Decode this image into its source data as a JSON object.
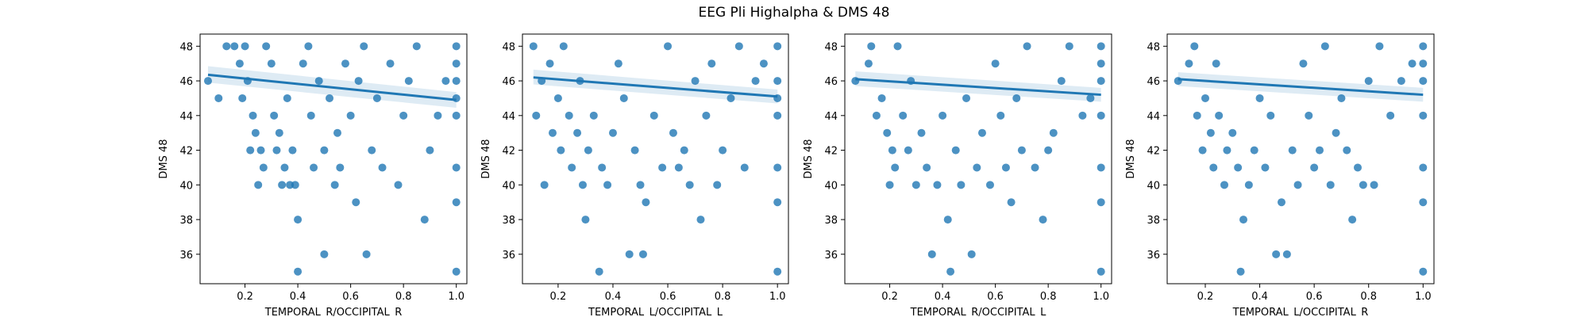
{
  "figure": {
    "title": "EEG Pli Highalpha & DMS 48"
  },
  "colors": {
    "points": "#1f77b4",
    "line": "#1f77b4",
    "band": "#1f77b4",
    "frame": "#000000"
  },
  "chart_data": [
    {
      "type": "scatter",
      "xlabel": "TEMPORAL_R/OCCIPITAL_R",
      "ylabel": "DMS 48",
      "xlim": [
        0.03,
        1.04
      ],
      "ylim": [
        34.3,
        48.7
      ],
      "xticks": [
        "0.2",
        "0.4",
        "0.6",
        "0.8",
        "1.0"
      ],
      "yticks": [
        "36",
        "38",
        "40",
        "42",
        "44",
        "46",
        "48"
      ],
      "regression": {
        "x": [
          0.06,
          1.0
        ],
        "y": [
          46.35,
          44.9
        ],
        "ci_low_x0": 45.9,
        "ci_high_x0": 46.85,
        "ci_low_x1": 44.45,
        "ci_high_x1": 45.35
      },
      "points": [
        {
          "x": 0.06,
          "y": 46
        },
        {
          "x": 0.1,
          "y": 45
        },
        {
          "x": 0.13,
          "y": 48
        },
        {
          "x": 0.16,
          "y": 48
        },
        {
          "x": 0.18,
          "y": 47
        },
        {
          "x": 0.19,
          "y": 45
        },
        {
          "x": 0.2,
          "y": 48
        },
        {
          "x": 0.21,
          "y": 46
        },
        {
          "x": 0.22,
          "y": 42
        },
        {
          "x": 0.23,
          "y": 44
        },
        {
          "x": 0.24,
          "y": 43
        },
        {
          "x": 0.25,
          "y": 40
        },
        {
          "x": 0.26,
          "y": 42
        },
        {
          "x": 0.27,
          "y": 41
        },
        {
          "x": 0.28,
          "y": 48
        },
        {
          "x": 0.3,
          "y": 47
        },
        {
          "x": 0.31,
          "y": 44
        },
        {
          "x": 0.32,
          "y": 42
        },
        {
          "x": 0.33,
          "y": 43
        },
        {
          "x": 0.34,
          "y": 40
        },
        {
          "x": 0.35,
          "y": 41
        },
        {
          "x": 0.36,
          "y": 45
        },
        {
          "x": 0.37,
          "y": 40
        },
        {
          "x": 0.38,
          "y": 42
        },
        {
          "x": 0.39,
          "y": 40
        },
        {
          "x": 0.4,
          "y": 38
        },
        {
          "x": 0.4,
          "y": 35
        },
        {
          "x": 0.42,
          "y": 47
        },
        {
          "x": 0.44,
          "y": 48
        },
        {
          "x": 0.45,
          "y": 44
        },
        {
          "x": 0.46,
          "y": 41
        },
        {
          "x": 0.48,
          "y": 46
        },
        {
          "x": 0.5,
          "y": 36
        },
        {
          "x": 0.5,
          "y": 42
        },
        {
          "x": 0.52,
          "y": 45
        },
        {
          "x": 0.54,
          "y": 40
        },
        {
          "x": 0.55,
          "y": 43
        },
        {
          "x": 0.56,
          "y": 41
        },
        {
          "x": 0.58,
          "y": 47
        },
        {
          "x": 0.6,
          "y": 44
        },
        {
          "x": 0.62,
          "y": 39
        },
        {
          "x": 0.63,
          "y": 46
        },
        {
          "x": 0.65,
          "y": 48
        },
        {
          "x": 0.66,
          "y": 36
        },
        {
          "x": 0.68,
          "y": 42
        },
        {
          "x": 0.7,
          "y": 45
        },
        {
          "x": 0.72,
          "y": 41
        },
        {
          "x": 0.75,
          "y": 47
        },
        {
          "x": 0.78,
          "y": 40
        },
        {
          "x": 0.8,
          "y": 44
        },
        {
          "x": 0.82,
          "y": 46
        },
        {
          "x": 0.85,
          "y": 48
        },
        {
          "x": 0.88,
          "y": 38
        },
        {
          "x": 0.9,
          "y": 42
        },
        {
          "x": 0.93,
          "y": 44
        },
        {
          "x": 0.96,
          "y": 46
        },
        {
          "x": 1.0,
          "y": 48
        },
        {
          "x": 1.0,
          "y": 47
        },
        {
          "x": 1.0,
          "y": 46
        },
        {
          "x": 1.0,
          "y": 45
        },
        {
          "x": 1.0,
          "y": 44
        },
        {
          "x": 1.0,
          "y": 41
        },
        {
          "x": 1.0,
          "y": 39
        },
        {
          "x": 1.0,
          "y": 35
        }
      ]
    },
    {
      "type": "scatter",
      "xlabel": "TEMPORAL_L/OCCIPITAL_L",
      "ylabel": "DMS 48",
      "xlim": [
        0.07,
        1.04
      ],
      "ylim": [
        34.3,
        48.7
      ],
      "xticks": [
        "0.2",
        "0.4",
        "0.6",
        "0.8",
        "1.0"
      ],
      "yticks": [
        "36",
        "38",
        "40",
        "42",
        "44",
        "46",
        "48"
      ],
      "regression": {
        "x": [
          0.11,
          1.0
        ],
        "y": [
          46.2,
          45.1
        ],
        "ci_low_x0": 45.8,
        "ci_high_x0": 46.65,
        "ci_low_x1": 44.7,
        "ci_high_x1": 45.5
      },
      "points": [
        {
          "x": 0.11,
          "y": 48
        },
        {
          "x": 0.12,
          "y": 44
        },
        {
          "x": 0.14,
          "y": 46
        },
        {
          "x": 0.15,
          "y": 40
        },
        {
          "x": 0.17,
          "y": 47
        },
        {
          "x": 0.18,
          "y": 43
        },
        {
          "x": 0.2,
          "y": 45
        },
        {
          "x": 0.21,
          "y": 42
        },
        {
          "x": 0.22,
          "y": 48
        },
        {
          "x": 0.24,
          "y": 44
        },
        {
          "x": 0.25,
          "y": 41
        },
        {
          "x": 0.27,
          "y": 43
        },
        {
          "x": 0.28,
          "y": 46
        },
        {
          "x": 0.29,
          "y": 40
        },
        {
          "x": 0.3,
          "y": 38
        },
        {
          "x": 0.31,
          "y": 42
        },
        {
          "x": 0.33,
          "y": 44
        },
        {
          "x": 0.35,
          "y": 35
        },
        {
          "x": 0.36,
          "y": 41
        },
        {
          "x": 0.38,
          "y": 40
        },
        {
          "x": 0.4,
          "y": 43
        },
        {
          "x": 0.42,
          "y": 47
        },
        {
          "x": 0.44,
          "y": 45
        },
        {
          "x": 0.46,
          "y": 36
        },
        {
          "x": 0.48,
          "y": 42
        },
        {
          "x": 0.5,
          "y": 40
        },
        {
          "x": 0.51,
          "y": 36
        },
        {
          "x": 0.52,
          "y": 39
        },
        {
          "x": 0.55,
          "y": 44
        },
        {
          "x": 0.58,
          "y": 41
        },
        {
          "x": 0.6,
          "y": 48
        },
        {
          "x": 0.62,
          "y": 43
        },
        {
          "x": 0.64,
          "y": 41
        },
        {
          "x": 0.66,
          "y": 42
        },
        {
          "x": 0.68,
          "y": 40
        },
        {
          "x": 0.7,
          "y": 46
        },
        {
          "x": 0.72,
          "y": 38
        },
        {
          "x": 0.74,
          "y": 44
        },
        {
          "x": 0.76,
          "y": 47
        },
        {
          "x": 0.78,
          "y": 40
        },
        {
          "x": 0.8,
          "y": 42
        },
        {
          "x": 0.83,
          "y": 45
        },
        {
          "x": 0.86,
          "y": 48
        },
        {
          "x": 0.88,
          "y": 41
        },
        {
          "x": 0.92,
          "y": 46
        },
        {
          "x": 0.95,
          "y": 47
        },
        {
          "x": 1.0,
          "y": 48
        },
        {
          "x": 1.0,
          "y": 46
        },
        {
          "x": 1.0,
          "y": 45
        },
        {
          "x": 1.0,
          "y": 44
        },
        {
          "x": 1.0,
          "y": 41
        },
        {
          "x": 1.0,
          "y": 39
        },
        {
          "x": 1.0,
          "y": 35
        }
      ]
    },
    {
      "type": "scatter",
      "xlabel": "TEMPORAL_R/OCCIPITAL_L",
      "ylabel": "DMS 48",
      "xlim": [
        0.03,
        1.04
      ],
      "ylim": [
        34.3,
        48.7
      ],
      "xticks": [
        "0.2",
        "0.4",
        "0.6",
        "0.8",
        "1.0"
      ],
      "yticks": [
        "36",
        "38",
        "40",
        "42",
        "44",
        "46",
        "48"
      ],
      "regression": {
        "x": [
          0.07,
          1.0
        ],
        "y": [
          46.1,
          45.2
        ],
        "ci_low_x0": 45.7,
        "ci_high_x0": 46.55,
        "ci_low_x1": 44.8,
        "ci_high_x1": 45.6
      },
      "points": [
        {
          "x": 0.07,
          "y": 46
        },
        {
          "x": 0.12,
          "y": 47
        },
        {
          "x": 0.13,
          "y": 48
        },
        {
          "x": 0.15,
          "y": 44
        },
        {
          "x": 0.17,
          "y": 45
        },
        {
          "x": 0.19,
          "y": 43
        },
        {
          "x": 0.2,
          "y": 40
        },
        {
          "x": 0.21,
          "y": 42
        },
        {
          "x": 0.22,
          "y": 41
        },
        {
          "x": 0.23,
          "y": 48
        },
        {
          "x": 0.25,
          "y": 44
        },
        {
          "x": 0.27,
          "y": 42
        },
        {
          "x": 0.28,
          "y": 46
        },
        {
          "x": 0.3,
          "y": 40
        },
        {
          "x": 0.32,
          "y": 43
        },
        {
          "x": 0.34,
          "y": 41
        },
        {
          "x": 0.36,
          "y": 36
        },
        {
          "x": 0.38,
          "y": 40
        },
        {
          "x": 0.4,
          "y": 44
        },
        {
          "x": 0.42,
          "y": 38
        },
        {
          "x": 0.43,
          "y": 35
        },
        {
          "x": 0.45,
          "y": 42
        },
        {
          "x": 0.47,
          "y": 40
        },
        {
          "x": 0.49,
          "y": 45
        },
        {
          "x": 0.51,
          "y": 36
        },
        {
          "x": 0.53,
          "y": 41
        },
        {
          "x": 0.55,
          "y": 43
        },
        {
          "x": 0.58,
          "y": 40
        },
        {
          "x": 0.6,
          "y": 47
        },
        {
          "x": 0.62,
          "y": 44
        },
        {
          "x": 0.64,
          "y": 41
        },
        {
          "x": 0.66,
          "y": 39
        },
        {
          "x": 0.68,
          "y": 45
        },
        {
          "x": 0.7,
          "y": 42
        },
        {
          "x": 0.72,
          "y": 48
        },
        {
          "x": 0.75,
          "y": 41
        },
        {
          "x": 0.78,
          "y": 38
        },
        {
          "x": 0.8,
          "y": 42
        },
        {
          "x": 0.82,
          "y": 43
        },
        {
          "x": 0.85,
          "y": 46
        },
        {
          "x": 0.88,
          "y": 48
        },
        {
          "x": 0.93,
          "y": 44
        },
        {
          "x": 0.96,
          "y": 45
        },
        {
          "x": 1.0,
          "y": 48
        },
        {
          "x": 1.0,
          "y": 47
        },
        {
          "x": 1.0,
          "y": 46
        },
        {
          "x": 1.0,
          "y": 44
        },
        {
          "x": 1.0,
          "y": 41
        },
        {
          "x": 1.0,
          "y": 39
        },
        {
          "x": 1.0,
          "y": 35
        }
      ]
    },
    {
      "type": "scatter",
      "xlabel": "TEMPORAL_L/OCCIPITAL_R",
      "ylabel": "DMS 48",
      "xlim": [
        0.06,
        1.04
      ],
      "ylim": [
        34.3,
        48.7
      ],
      "xticks": [
        "0.2",
        "0.4",
        "0.6",
        "0.8",
        "1.0"
      ],
      "yticks": [
        "36",
        "38",
        "40",
        "42",
        "44",
        "46",
        "48"
      ],
      "regression": {
        "x": [
          0.1,
          1.0
        ],
        "y": [
          46.1,
          45.2
        ],
        "ci_low_x0": 45.7,
        "ci_high_x0": 46.5,
        "ci_low_x1": 44.8,
        "ci_high_x1": 45.6
      },
      "points": [
        {
          "x": 0.1,
          "y": 46
        },
        {
          "x": 0.14,
          "y": 47
        },
        {
          "x": 0.16,
          "y": 48
        },
        {
          "x": 0.17,
          "y": 44
        },
        {
          "x": 0.19,
          "y": 42
        },
        {
          "x": 0.2,
          "y": 45
        },
        {
          "x": 0.22,
          "y": 43
        },
        {
          "x": 0.23,
          "y": 41
        },
        {
          "x": 0.24,
          "y": 47
        },
        {
          "x": 0.25,
          "y": 44
        },
        {
          "x": 0.27,
          "y": 40
        },
        {
          "x": 0.28,
          "y": 42
        },
        {
          "x": 0.3,
          "y": 43
        },
        {
          "x": 0.32,
          "y": 41
        },
        {
          "x": 0.33,
          "y": 35
        },
        {
          "x": 0.34,
          "y": 38
        },
        {
          "x": 0.36,
          "y": 40
        },
        {
          "x": 0.38,
          "y": 42
        },
        {
          "x": 0.4,
          "y": 45
        },
        {
          "x": 0.42,
          "y": 41
        },
        {
          "x": 0.44,
          "y": 44
        },
        {
          "x": 0.46,
          "y": 36
        },
        {
          "x": 0.48,
          "y": 39
        },
        {
          "x": 0.5,
          "y": 36
        },
        {
          "x": 0.52,
          "y": 42
        },
        {
          "x": 0.54,
          "y": 40
        },
        {
          "x": 0.56,
          "y": 47
        },
        {
          "x": 0.58,
          "y": 44
        },
        {
          "x": 0.6,
          "y": 41
        },
        {
          "x": 0.62,
          "y": 42
        },
        {
          "x": 0.64,
          "y": 48
        },
        {
          "x": 0.66,
          "y": 40
        },
        {
          "x": 0.68,
          "y": 43
        },
        {
          "x": 0.7,
          "y": 45
        },
        {
          "x": 0.72,
          "y": 42
        },
        {
          "x": 0.74,
          "y": 38
        },
        {
          "x": 0.76,
          "y": 41
        },
        {
          "x": 0.78,
          "y": 40
        },
        {
          "x": 0.8,
          "y": 46
        },
        {
          "x": 0.82,
          "y": 40
        },
        {
          "x": 0.84,
          "y": 48
        },
        {
          "x": 0.88,
          "y": 44
        },
        {
          "x": 0.92,
          "y": 46
        },
        {
          "x": 0.96,
          "y": 47
        },
        {
          "x": 1.0,
          "y": 48
        },
        {
          "x": 1.0,
          "y": 47
        },
        {
          "x": 1.0,
          "y": 46
        },
        {
          "x": 1.0,
          "y": 44
        },
        {
          "x": 1.0,
          "y": 41
        },
        {
          "x": 1.0,
          "y": 39
        },
        {
          "x": 1.0,
          "y": 35
        }
      ]
    }
  ]
}
